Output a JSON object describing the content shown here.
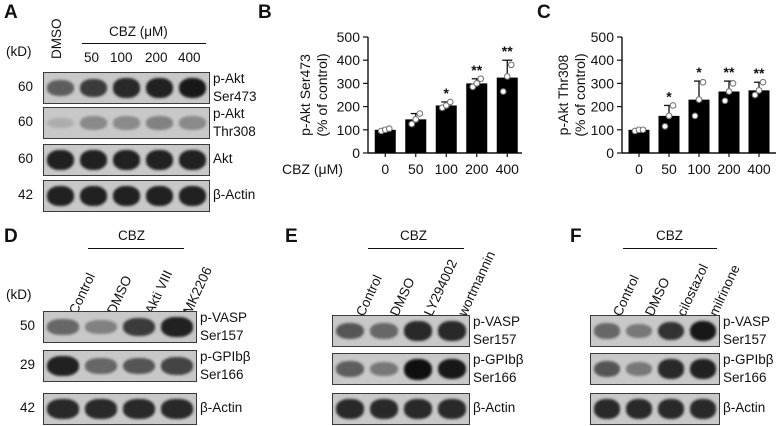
{
  "panels": {
    "A": {
      "letter": "A",
      "kd_label": "(kD)",
      "dmso_label": "DMSO",
      "cbz_label": "CBZ (μM)",
      "doses": [
        "50",
        "100",
        "200",
        "400"
      ],
      "rows": [
        {
          "kd": "60",
          "label1": "p-Akt",
          "label2": "Ser473",
          "intensity": [
            0.55,
            0.75,
            0.85,
            0.9,
            0.95
          ]
        },
        {
          "kd": "60",
          "label1": "p-Akt",
          "label2": "Thr308",
          "intensity": [
            0.1,
            0.3,
            0.3,
            0.35,
            0.3
          ]
        },
        {
          "kd": "60",
          "label1": "Akt",
          "label2": "",
          "intensity": [
            0.9,
            0.9,
            0.9,
            0.9,
            0.9
          ]
        },
        {
          "kd": "42",
          "label1": "β-Actin",
          "label2": "",
          "intensity": [
            0.9,
            0.9,
            0.9,
            0.9,
            0.9
          ]
        }
      ]
    },
    "D": {
      "letter": "D",
      "kd_label": "(kD)",
      "cbz_label": "CBZ",
      "lanes": [
        "Control",
        "DMSO",
        "Akti VIII",
        "MK2206"
      ],
      "rows": [
        {
          "kd": "50",
          "label1": "p-VASP",
          "label2": "Ser157",
          "intensity": [
            0.5,
            0.35,
            0.75,
            0.9
          ]
        },
        {
          "kd": "29",
          "label1": "p-GPIbβ",
          "label2": "Ser166",
          "intensity": [
            0.9,
            0.5,
            0.6,
            0.7
          ]
        },
        {
          "kd": "42",
          "label1": "β-Actin",
          "label2": "",
          "intensity": [
            0.85,
            0.85,
            0.85,
            0.85
          ]
        }
      ]
    },
    "E": {
      "letter": "E",
      "cbz_label": "CBZ",
      "lanes": [
        "Control",
        "DMSO",
        "LY294002",
        "wortmannin"
      ],
      "rows": [
        {
          "label1": "p-VASP",
          "label2": "Ser157",
          "intensity": [
            0.6,
            0.5,
            0.85,
            0.85
          ]
        },
        {
          "label1": "p-GPIbβ",
          "label2": "Ser166",
          "intensity": [
            0.55,
            0.4,
            1.0,
            0.95
          ]
        },
        {
          "label1": "β-Actin",
          "label2": "",
          "intensity": [
            0.85,
            0.85,
            0.85,
            0.85
          ]
        }
      ]
    },
    "F": {
      "letter": "F",
      "cbz_label": "CBZ",
      "lanes": [
        "Control",
        "DMSO",
        "cilostazol",
        "milrinone"
      ],
      "rows": [
        {
          "label1": "p-VASP",
          "label2": "Ser157",
          "intensity": [
            0.5,
            0.4,
            0.8,
            0.95
          ]
        },
        {
          "label1": "p-GPIbβ",
          "label2": "Ser166",
          "intensity": [
            0.6,
            0.4,
            0.85,
            0.9
          ]
        },
        {
          "label1": "β-Actin",
          "label2": "",
          "intensity": [
            0.85,
            0.85,
            0.85,
            0.85
          ]
        }
      ]
    }
  },
  "chart_data": [
    {
      "type": "bar",
      "panel": "B",
      "title": "",
      "xlabel": "CBZ (μM)",
      "ylabel": "p-Akt Ser473 (% of control)",
      "ylabel_lines": [
        "p-Akt Ser473",
        "(% of control)"
      ],
      "categories": [
        "0",
        "50",
        "100",
        "200",
        "400"
      ],
      "values": [
        100,
        145,
        205,
        300,
        325
      ],
      "errors": [
        5,
        25,
        15,
        20,
        75
      ],
      "points": [
        [
          95,
          100,
          105
        ],
        [
          125,
          145,
          170
        ],
        [
          195,
          205,
          220
        ],
        [
          285,
          300,
          320
        ],
        [
          265,
          330,
          380
        ]
      ],
      "significance": [
        "",
        "",
        "*",
        "**",
        "**"
      ],
      "ylim": [
        0,
        500
      ],
      "yticks": [
        "0",
        "100",
        "200",
        "300",
        "400",
        "500"
      ]
    },
    {
      "type": "bar",
      "panel": "C",
      "title": "",
      "xlabel": "",
      "ylabel": "p-Akt Thr308 (% of control)",
      "ylabel_lines": [
        "p-Akt Thr308",
        "(% of control)"
      ],
      "categories": [
        "0",
        "50",
        "100",
        "200",
        "400"
      ],
      "values": [
        100,
        160,
        230,
        265,
        270
      ],
      "errors": [
        5,
        45,
        80,
        45,
        35
      ],
      "points": [
        [
          95,
          100,
          100
        ],
        [
          115,
          160,
          205
        ],
        [
          160,
          230,
          305
        ],
        [
          225,
          265,
          300
        ],
        [
          250,
          270,
          305
        ]
      ],
      "significance": [
        "",
        "*",
        "*",
        "**",
        "**"
      ],
      "ylim": [
        0,
        500
      ],
      "yticks": [
        "0",
        "100",
        "200",
        "300",
        "400",
        "500"
      ]
    }
  ]
}
